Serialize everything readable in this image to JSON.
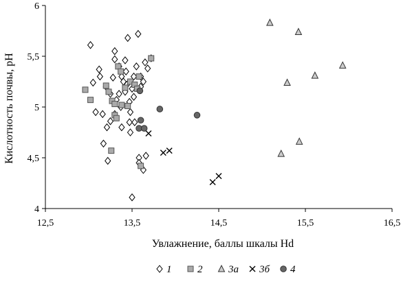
{
  "chart_data": {
    "type": "scatter",
    "title": "",
    "xlabel": "Увлажнение, баллы шкалы Hd",
    "ylabel": "Кислотность почвы, pH",
    "xlim": [
      12.5,
      16.5
    ],
    "ylim": [
      4,
      6
    ],
    "x_ticks": [
      "12,5",
      "13,5",
      "14,5",
      "15,5",
      "16,5"
    ],
    "y_ticks": [
      "4",
      "4,5",
      "5",
      "5,5",
      "6"
    ],
    "grid": false,
    "legend_position": "bottom",
    "series": [
      {
        "name": "1",
        "marker": "diamond",
        "color": "#000000",
        "fill": "#ffffff",
        "points": [
          [
            13.02,
            5.61
          ],
          [
            13.12,
            5.37
          ],
          [
            13.13,
            5.3
          ],
          [
            13.05,
            5.24
          ],
          [
            13.2,
            5.2
          ],
          [
            13.08,
            4.95
          ],
          [
            13.16,
            4.93
          ],
          [
            13.21,
            4.8
          ],
          [
            13.17,
            4.64
          ],
          [
            13.22,
            4.47
          ],
          [
            13.3,
            5.55
          ],
          [
            13.3,
            5.47
          ],
          [
            13.35,
            5.4
          ],
          [
            13.28,
            5.29
          ],
          [
            13.25,
            5.13
          ],
          [
            13.38,
            5.3
          ],
          [
            13.4,
            5.25
          ],
          [
            13.35,
            5.13
          ],
          [
            13.32,
            5.07
          ],
          [
            13.3,
            4.93
          ],
          [
            13.38,
            4.8
          ],
          [
            13.37,
            5.0
          ],
          [
            13.42,
            5.15
          ],
          [
            13.45,
            5.68
          ],
          [
            13.43,
            5.35
          ],
          [
            13.44,
            5.22
          ],
          [
            13.47,
            5.05
          ],
          [
            13.48,
            4.95
          ],
          [
            13.47,
            4.85
          ],
          [
            13.48,
            4.75
          ],
          [
            13.5,
            5.18
          ],
          [
            13.52,
            5.1
          ],
          [
            13.52,
            5.3
          ],
          [
            13.55,
            5.4
          ],
          [
            13.57,
            5.72
          ],
          [
            13.6,
            5.3
          ],
          [
            13.63,
            5.25
          ],
          [
            13.6,
            5.2
          ],
          [
            13.65,
            5.44
          ],
          [
            13.72,
            5.48
          ],
          [
            13.68,
            5.38
          ],
          [
            13.58,
            4.5
          ],
          [
            13.63,
            4.38
          ],
          [
            13.66,
            4.52
          ],
          [
            13.5,
            4.11
          ],
          [
            13.53,
            4.85
          ],
          [
            13.42,
            5.46
          ],
          [
            13.58,
            4.45
          ],
          [
            13.25,
            4.86
          ]
        ]
      },
      {
        "name": "2",
        "marker": "square",
        "color": "#555555",
        "fill": "#aaaaaa",
        "points": [
          [
            12.96,
            5.17
          ],
          [
            13.02,
            5.07
          ],
          [
            13.2,
            5.21
          ],
          [
            13.23,
            5.15
          ],
          [
            13.27,
            5.06
          ],
          [
            13.3,
            4.92
          ],
          [
            13.34,
            5.4
          ],
          [
            13.37,
            5.35
          ],
          [
            13.42,
            5.19
          ],
          [
            13.45,
            5.01
          ],
          [
            13.48,
            5.25
          ],
          [
            13.53,
            5.22
          ],
          [
            13.56,
            5.18
          ],
          [
            13.58,
            5.3
          ],
          [
            13.72,
            5.48
          ],
          [
            13.3,
            5.03
          ],
          [
            13.32,
            4.89
          ],
          [
            13.26,
            4.57
          ],
          [
            13.6,
            4.42
          ],
          [
            13.38,
            5.02
          ]
        ]
      },
      {
        "name": "3а",
        "marker": "triangle",
        "color": "#333333",
        "fill": "#cccccc",
        "points": [
          [
            15.09,
            5.83
          ],
          [
            15.42,
            5.74
          ],
          [
            15.29,
            5.24
          ],
          [
            15.61,
            5.31
          ],
          [
            15.93,
            5.41
          ],
          [
            15.43,
            4.66
          ],
          [
            15.22,
            4.54
          ]
        ]
      },
      {
        "name": "3б",
        "marker": "x",
        "color": "#000000",
        "fill": "none",
        "points": [
          [
            13.86,
            4.55
          ],
          [
            13.93,
            4.57
          ],
          [
            14.43,
            4.26
          ],
          [
            14.5,
            4.32
          ],
          [
            13.69,
            4.74
          ]
        ]
      },
      {
        "name": "4",
        "marker": "circle",
        "color": "#333333",
        "fill": "#666666",
        "points": [
          [
            13.59,
            5.16
          ],
          [
            13.82,
            4.98
          ],
          [
            14.25,
            4.92
          ],
          [
            13.6,
            4.87
          ],
          [
            13.58,
            4.79
          ],
          [
            13.64,
            4.79
          ]
        ]
      }
    ]
  }
}
